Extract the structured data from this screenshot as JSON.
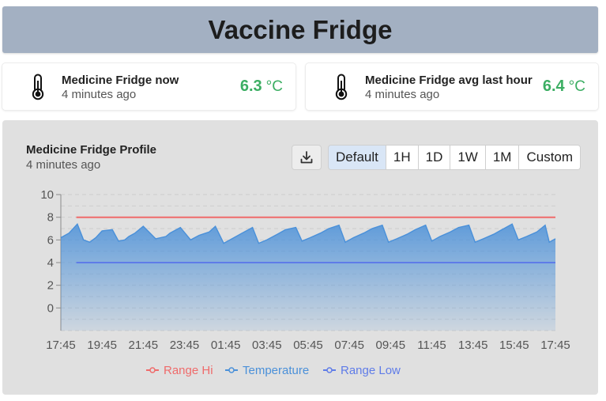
{
  "header": {
    "title": "Vaccine Fridge"
  },
  "cards": [
    {
      "title": "Medicine Fridge now",
      "subtitle": "4 minutes ago",
      "value": "6.3",
      "unit": "°C",
      "icon": "thermometer-icon"
    },
    {
      "title": "Medicine Fridge avg last hour",
      "subtitle": "4 minutes ago",
      "value": "6.4",
      "unit": "°C",
      "icon": "thermometer-icon"
    }
  ],
  "panel": {
    "title": "Medicine Fridge Profile",
    "subtitle": "4 minutes ago",
    "download_icon": "download-icon",
    "ranges": [
      {
        "label": "Default",
        "active": true
      },
      {
        "label": "1H",
        "active": false
      },
      {
        "label": "1D",
        "active": false
      },
      {
        "label": "1W",
        "active": false
      },
      {
        "label": "1M",
        "active": false
      },
      {
        "label": "Custom",
        "active": false
      }
    ]
  },
  "colors": {
    "value_green": "#3cae63",
    "range_hi": "#ef6b6b",
    "temperature": "#4a90d9",
    "range_low": "#5f7ce8",
    "header_bg": "#a3b0c2"
  },
  "chart_data": {
    "type": "line",
    "title": "",
    "xlabel": "",
    "ylabel": "",
    "ylim": [
      -2,
      10
    ],
    "yticks": [
      0,
      2,
      4,
      6,
      8,
      10
    ],
    "x_tick_labels": [
      "17:45",
      "19:45",
      "21:45",
      "23:45",
      "01:45",
      "03:45",
      "05:45",
      "07:45",
      "09:45",
      "11:45",
      "13:45",
      "15:45",
      "17:45"
    ],
    "x_range_hours": [
      0,
      24
    ],
    "grid": true,
    "legend_position": "bottom",
    "series": [
      {
        "name": "Range Hi",
        "type": "line",
        "x": [
          0.75,
          24
        ],
        "values": [
          8,
          8
        ]
      },
      {
        "name": "Temperature",
        "type": "area",
        "x": [
          0,
          0.4,
          0.8,
          1.1,
          1.4,
          1.7,
          2.0,
          2.5,
          2.8,
          3.1,
          3.3,
          3.6,
          4.0,
          4.6,
          5.1,
          5.3,
          5.8,
          6.3,
          6.7,
          7.2,
          7.5,
          7.9,
          8.4,
          8.8,
          9.3,
          9.6,
          10.0,
          10.5,
          10.9,
          11.4,
          11.7,
          12.1,
          12.6,
          13.0,
          13.5,
          13.8,
          14.2,
          14.7,
          15.1,
          15.6,
          15.9,
          16.3,
          16.8,
          17.2,
          17.7,
          18.0,
          18.4,
          18.9,
          19.3,
          19.8,
          20.1,
          20.5,
          21.0,
          21.4,
          21.9,
          22.2,
          22.6,
          23.1,
          23.5,
          23.7,
          24.0
        ],
        "values": [
          6.2,
          6.6,
          7.4,
          6.0,
          5.8,
          6.2,
          6.8,
          6.9,
          5.9,
          6.0,
          6.3,
          6.6,
          7.2,
          6.1,
          6.3,
          6.6,
          7.1,
          6.0,
          6.4,
          6.7,
          7.2,
          5.7,
          6.2,
          6.6,
          7.1,
          5.7,
          6.0,
          6.5,
          6.9,
          7.1,
          5.9,
          6.2,
          6.6,
          7.0,
          7.3,
          5.8,
          6.2,
          6.6,
          7.0,
          7.3,
          5.8,
          6.1,
          6.5,
          6.9,
          7.3,
          5.9,
          6.3,
          6.7,
          7.1,
          7.3,
          5.8,
          6.1,
          6.5,
          6.9,
          7.4,
          6.0,
          6.3,
          6.7,
          7.3,
          5.8,
          6.1
        ]
      },
      {
        "name": "Range Low",
        "type": "line",
        "x": [
          0.75,
          24
        ],
        "values": [
          4,
          4
        ]
      }
    ]
  }
}
